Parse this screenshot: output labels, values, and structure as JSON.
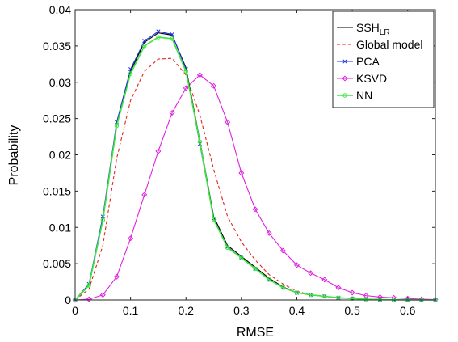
{
  "chart_data": {
    "type": "line",
    "title": "",
    "xlabel": "RMSE",
    "ylabel": "Probability",
    "xlim": [
      0,
      0.65
    ],
    "ylim": [
      0,
      0.04
    ],
    "xticks": [
      "0",
      "0.1",
      "0.2",
      "0.3",
      "0.4",
      "0.5",
      "0.6"
    ],
    "yticks": [
      "0",
      "0.005",
      "0.01",
      "0.015",
      "0.02",
      "0.025",
      "0.03",
      "0.035",
      "0.04"
    ],
    "grid": false,
    "legend_placement": "top-right",
    "x": [
      0.0,
      0.025,
      0.05,
      0.075,
      0.1,
      0.125,
      0.15,
      0.175,
      0.2,
      0.225,
      0.25,
      0.275,
      0.3,
      0.325,
      0.35,
      0.375,
      0.4,
      0.425,
      0.45,
      0.475,
      0.5,
      0.525,
      0.55,
      0.575,
      0.6,
      0.625,
      0.65
    ],
    "series": [
      {
        "name": "SSH",
        "name_sub": "LR",
        "color": "#000000",
        "dash": "",
        "marker": "none",
        "values": [
          0.0,
          0.002,
          0.011,
          0.024,
          0.0315,
          0.0355,
          0.0368,
          0.0365,
          0.032,
          0.022,
          0.0115,
          0.0075,
          0.006,
          0.0045,
          0.003,
          0.0018,
          0.001,
          0.0007,
          0.0005,
          0.0003,
          0.0002,
          0.0001,
          5e-05,
          2e-05,
          1e-05,
          0.0,
          0.0
        ]
      },
      {
        "name": "Global model",
        "color": "#e8221b",
        "dash": "4,3",
        "marker": "none",
        "values": [
          0.0,
          0.0015,
          0.0075,
          0.0195,
          0.0275,
          0.0315,
          0.0332,
          0.0333,
          0.031,
          0.0255,
          0.018,
          0.0115,
          0.008,
          0.0055,
          0.0035,
          0.0022,
          0.0012,
          0.0007,
          0.0005,
          0.0003,
          0.0002,
          0.0001,
          5e-05,
          2e-05,
          1e-05,
          0.0,
          0.0
        ]
      },
      {
        "name": "PCA",
        "color": "#1f2fd6",
        "dash": "",
        "marker": "x",
        "values": [
          0.0,
          0.0022,
          0.0115,
          0.0245,
          0.0318,
          0.0357,
          0.037,
          0.0366,
          0.0318,
          0.0215,
          0.0112,
          0.0073,
          0.0058,
          0.0043,
          0.0028,
          0.0017,
          0.001,
          0.0007,
          0.0005,
          0.0003,
          0.0002,
          0.0001,
          5e-05,
          2e-05,
          1e-05,
          0.0,
          0.0
        ]
      },
      {
        "name": "KSVD",
        "color": "#e020e0",
        "dash": "",
        "marker": "diamond",
        "values": [
          0.0,
          0.0001,
          0.0007,
          0.0032,
          0.0085,
          0.0145,
          0.0205,
          0.0258,
          0.0292,
          0.031,
          0.0295,
          0.0245,
          0.0175,
          0.0125,
          0.0092,
          0.0068,
          0.0048,
          0.0037,
          0.0028,
          0.0017,
          0.001,
          0.0006,
          0.0004,
          0.0003,
          0.0002,
          0.0001,
          5e-05
        ]
      },
      {
        "name": "NN",
        "color": "#3ce63c",
        "dash": "",
        "marker": "circle",
        "values": [
          0.0,
          0.002,
          0.011,
          0.024,
          0.0312,
          0.035,
          0.0362,
          0.036,
          0.0315,
          0.0218,
          0.0111,
          0.0072,
          0.0058,
          0.0043,
          0.0028,
          0.0017,
          0.001,
          0.0007,
          0.0005,
          0.0003,
          0.0002,
          0.0001,
          5e-05,
          2e-05,
          1e-05,
          0.0,
          0.0
        ]
      }
    ]
  }
}
